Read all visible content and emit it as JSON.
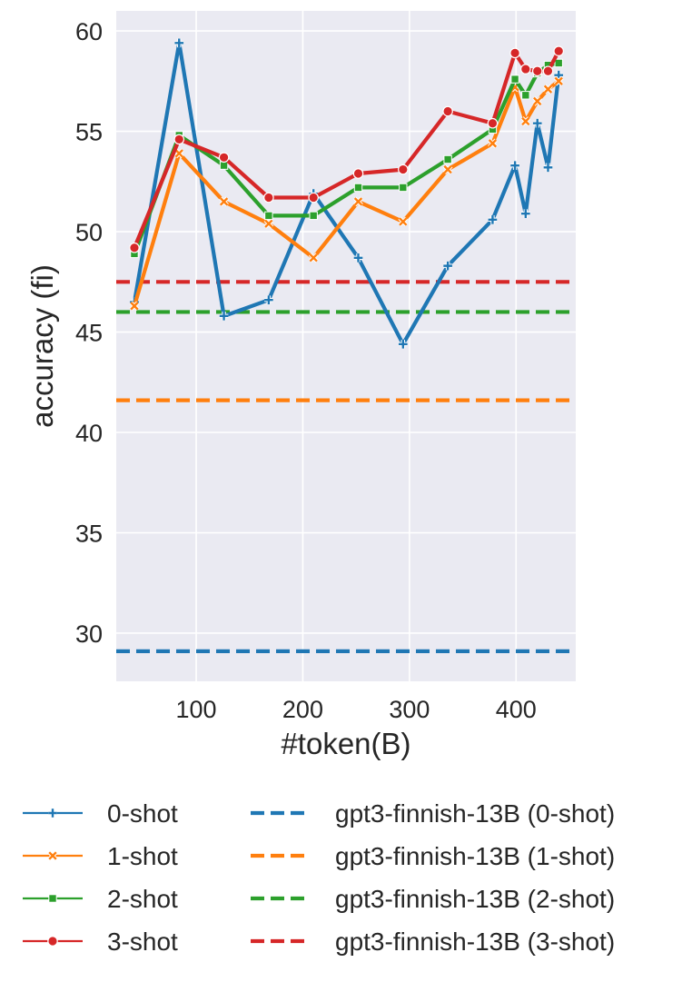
{
  "chart_data": {
    "type": "line",
    "xlabel": "#token(B)",
    "ylabel": "accuracy (fi)",
    "xlim": [
      25,
      456
    ],
    "ylim": [
      27.6,
      61.0
    ],
    "xticks": [
      100,
      200,
      300,
      400
    ],
    "yticks": [
      30,
      35,
      40,
      45,
      50,
      55,
      60
    ],
    "grid": true,
    "legend_position": "bottom",
    "series": [
      {
        "name": "0-shot",
        "color": "#1f77b4",
        "marker": "plus",
        "style": "solid",
        "x": [
          42,
          84,
          126,
          168,
          210,
          252,
          294,
          336,
          378,
          399,
          409,
          420,
          430,
          440
        ],
        "y": [
          46.5,
          59.4,
          45.8,
          46.6,
          51.9,
          48.7,
          44.4,
          48.3,
          50.6,
          53.3,
          50.9,
          55.4,
          53.2,
          57.8
        ]
      },
      {
        "name": "1-shot",
        "color": "#ff7f0e",
        "marker": "x",
        "style": "solid",
        "x": [
          42,
          84,
          126,
          168,
          210,
          252,
          294,
          336,
          378,
          399,
          409,
          420,
          430,
          440
        ],
        "y": [
          46.3,
          53.9,
          51.5,
          50.4,
          48.7,
          51.5,
          50.5,
          53.1,
          54.4,
          57.2,
          55.5,
          56.5,
          57.1,
          57.5
        ]
      },
      {
        "name": "2-shot",
        "color": "#2ca02c",
        "marker": "square",
        "style": "solid",
        "x": [
          42,
          84,
          126,
          168,
          210,
          252,
          294,
          336,
          378,
          399,
          409,
          420,
          430,
          440
        ],
        "y": [
          48.9,
          54.8,
          53.3,
          50.8,
          50.8,
          52.2,
          52.2,
          53.6,
          55.1,
          57.6,
          56.8,
          57.9,
          58.3,
          58.4
        ]
      },
      {
        "name": "3-shot",
        "color": "#d62728",
        "marker": "circle",
        "style": "solid",
        "x": [
          42,
          84,
          126,
          168,
          210,
          252,
          294,
          336,
          378,
          399,
          409,
          420,
          430,
          440
        ],
        "y": [
          49.2,
          54.6,
          53.7,
          51.7,
          51.7,
          52.9,
          53.1,
          56.0,
          55.4,
          58.9,
          58.1,
          58.0,
          58.0,
          59.0
        ]
      },
      {
        "name": "gpt3-finnish-13B (0-shot)",
        "color": "#1f77b4",
        "style": "dashed",
        "value": 29.1
      },
      {
        "name": "gpt3-finnish-13B (1-shot)",
        "color": "#ff7f0e",
        "style": "dashed",
        "value": 41.6
      },
      {
        "name": "gpt3-finnish-13B (2-shot)",
        "color": "#2ca02c",
        "style": "dashed",
        "value": 46.0
      },
      {
        "name": "gpt3-finnish-13B (3-shot)",
        "color": "#d62728",
        "style": "dashed",
        "value": 47.5
      }
    ]
  }
}
